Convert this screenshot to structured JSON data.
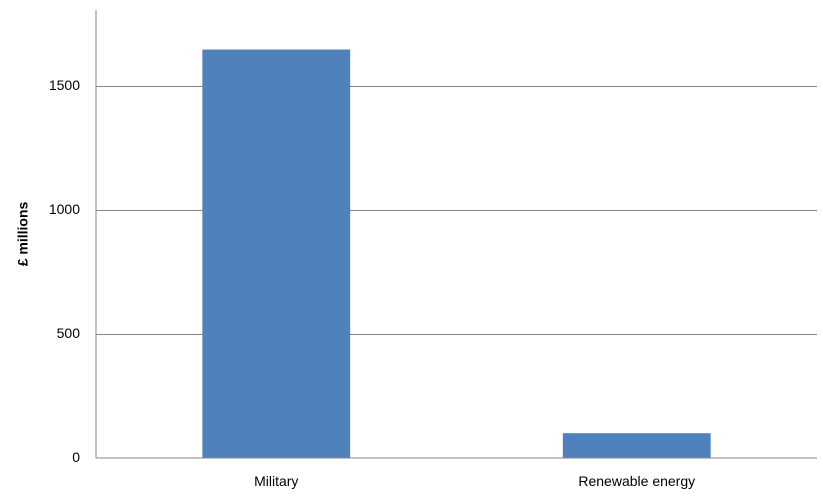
{
  "chart_data": {
    "type": "bar",
    "title": "",
    "xlabel": "",
    "ylabel": "£ millions",
    "categories": [
      "Military",
      "Renewable energy"
    ],
    "values": [
      1647,
      100
    ],
    "ylim": [
      0,
      1500
    ],
    "yticks": [
      0,
      500,
      1000,
      1500
    ],
    "grid": true,
    "legend": "none",
    "bar_color": "#4f81bd",
    "gridline_color": "#878787"
  }
}
